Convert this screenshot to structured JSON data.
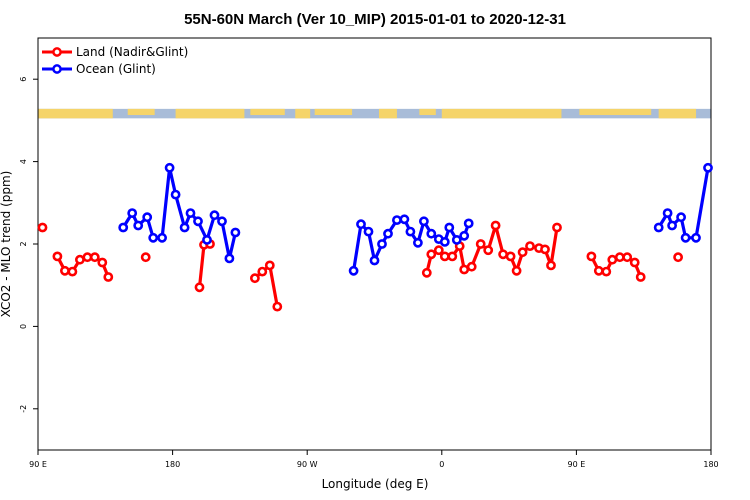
{
  "chart_data": {
    "type": "line",
    "title": "55N-60N March (Ver 10_MIP)   2015-01-01 to 2020-12-31",
    "xlabel": "Longitude (deg E)",
    "ylabel": "XCO2 - MLO trend (ppm)",
    "xlim": [
      90,
      540
    ],
    "ylim": [
      -3,
      7
    ],
    "xticks": [
      90,
      180,
      270,
      360,
      450,
      540
    ],
    "xtick_labels": [
      "90 E",
      "180",
      "90 W",
      "0",
      "90 E",
      "180"
    ],
    "yticks": [
      -2,
      0,
      2,
      4,
      6
    ],
    "ytick_labels": [
      "-2",
      "0",
      "2",
      "4",
      "6"
    ],
    "grid": false,
    "legend_position": "top-left",
    "map_strip": {
      "y_range": [
        5.05,
        5.28
      ],
      "land_color": "#f5d46a",
      "ocean_color": "#a8bcd8"
    },
    "series": [
      {
        "name": "Land (Nadir&Glint)",
        "color": "#ff0000",
        "segments": [
          [
            [
              93,
              2.4
            ]
          ],
          [
            [
              103,
              1.7
            ],
            [
              108,
              1.35
            ],
            [
              113,
              1.33
            ],
            [
              118,
              1.62
            ],
            [
              123,
              1.68
            ],
            [
              128,
              1.68
            ],
            [
              133,
              1.55
            ],
            [
              137,
              1.2
            ]
          ],
          [
            [
              162,
              1.68
            ]
          ],
          [
            [
              198,
              0.95
            ],
            [
              201,
              1.98
            ],
            [
              205,
              2.0
            ]
          ],
          [
            [
              235,
              1.17
            ],
            [
              240,
              1.33
            ],
            [
              245,
              1.48
            ],
            [
              250,
              0.48
            ]
          ],
          [
            [
              350,
              1.3
            ],
            [
              353,
              1.75
            ]
          ],
          [
            [
              358,
              1.85
            ],
            [
              362,
              1.7
            ],
            [
              367,
              1.7
            ],
            [
              372,
              1.95
            ],
            [
              375,
              1.38
            ],
            [
              380,
              1.45
            ],
            [
              386,
              2.0
            ],
            [
              391,
              1.85
            ],
            [
              396,
              2.45
            ],
            [
              401,
              1.75
            ],
            [
              406,
              1.7
            ],
            [
              410,
              1.35
            ],
            [
              414,
              1.8
            ],
            [
              419,
              1.95
            ],
            [
              425,
              1.9
            ],
            [
              429,
              1.87
            ],
            [
              433,
              1.48
            ],
            [
              437,
              2.4
            ]
          ],
          [
            [
              460,
              1.7
            ],
            [
              465,
              1.35
            ],
            [
              470,
              1.33
            ],
            [
              474,
              1.62
            ],
            [
              479,
              1.68
            ],
            [
              484,
              1.68
            ],
            [
              489,
              1.55
            ],
            [
              493,
              1.2
            ]
          ],
          [
            [
              518,
              1.68
            ]
          ]
        ]
      },
      {
        "name": "Ocean (Glint)",
        "color": "#0000ff",
        "segments": [
          [
            [
              147,
              2.4
            ],
            [
              153,
              2.75
            ],
            [
              157,
              2.45
            ],
            [
              163,
              2.65
            ],
            [
              167,
              2.15
            ],
            [
              173,
              2.15
            ],
            [
              178,
              3.85
            ],
            [
              182,
              3.2
            ],
            [
              188,
              2.4
            ],
            [
              192,
              2.75
            ],
            [
              197,
              2.55
            ],
            [
              203,
              2.1
            ],
            [
              208,
              2.7
            ],
            [
              213,
              2.55
            ],
            [
              218,
              1.65
            ],
            [
              222,
              2.28
            ]
          ],
          [
            [
              301,
              1.35
            ],
            [
              306,
              2.48
            ],
            [
              311,
              2.3
            ],
            [
              315,
              1.6
            ],
            [
              320,
              2.0
            ],
            [
              324,
              2.25
            ],
            [
              330,
              2.58
            ],
            [
              335,
              2.6
            ],
            [
              339,
              2.3
            ],
            [
              344,
              2.03
            ],
            [
              348,
              2.55
            ],
            [
              353,
              2.25
            ],
            [
              358,
              2.12
            ],
            [
              362,
              2.05
            ],
            [
              365,
              2.4
            ],
            [
              370,
              2.1
            ],
            [
              375,
              2.2
            ],
            [
              378,
              2.5
            ]
          ],
          [
            [
              505,
              2.4
            ],
            [
              511,
              2.75
            ],
            [
              514,
              2.45
            ],
            [
              520,
              2.65
            ],
            [
              523,
              2.15
            ],
            [
              530,
              2.15
            ],
            [
              538,
              3.85
            ]
          ]
        ]
      }
    ]
  }
}
